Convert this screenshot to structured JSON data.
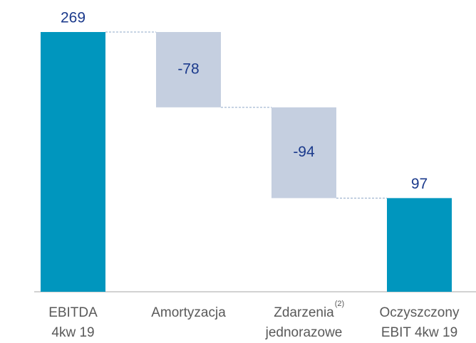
{
  "chart_data": {
    "type": "waterfall",
    "categories": [
      [
        "EBITDA",
        "4kw 19"
      ],
      [
        "Amortyzacja"
      ],
      [
        "Zdarzenia",
        "jednorazowe"
      ],
      [
        "Oczyszczony",
        "EBIT 4kw 19"
      ]
    ],
    "category_notes": [
      null,
      null,
      "(2)",
      null
    ],
    "values": [
      269,
      -78,
      -94,
      97
    ],
    "totals": [
      true,
      false,
      false,
      true
    ],
    "total_color": "#0096be",
    "delta_color": "#c5cfe0"
  }
}
